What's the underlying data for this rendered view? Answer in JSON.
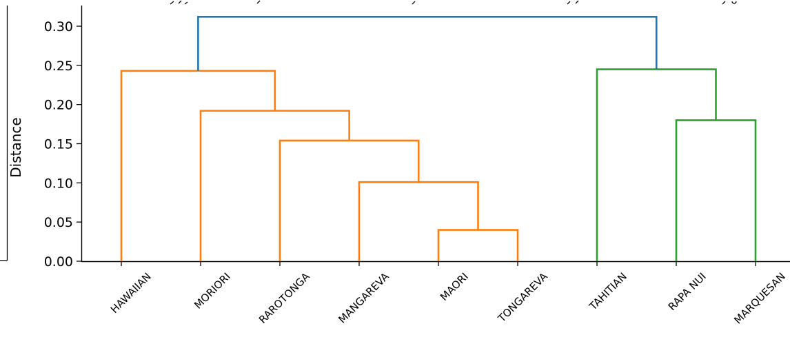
{
  "chart_data": {
    "type": "dendrogram",
    "ylabel": "Distance",
    "ylim": [
      0,
      0.325
    ],
    "yticks": [
      0.0,
      0.05,
      0.1,
      0.15,
      0.2,
      0.25,
      0.3
    ],
    "ytick_labels": [
      "0.00",
      "0.05",
      "0.10",
      "0.15",
      "0.20",
      "0.25",
      "0.30"
    ],
    "leaves": [
      "HAWAIIAN",
      "MORIORI",
      "RAROTONGA",
      "MANGAREVA",
      "MAORI",
      "TONGAREVA",
      "TAHITIAN",
      "RAPA NUI",
      "MARQUESAN"
    ],
    "links": [
      {
        "left": "MAORI",
        "right": "TONGAREVA",
        "height": 0.04,
        "color": "#ff7f0e"
      },
      {
        "left": "MANGAREVA",
        "right": "MAORI + TONGAREVA",
        "height": 0.101,
        "color": "#ff7f0e"
      },
      {
        "left": "RAROTONGA",
        "right": "MANGAREVA + MAORI + TONGAREVA",
        "height": 0.154,
        "color": "#ff7f0e"
      },
      {
        "left": "MORIORI",
        "right": "RAROTONGA + MANGAREVA + MAORI + TONGAREVA",
        "height": 0.192,
        "color": "#ff7f0e"
      },
      {
        "left": "HAWAIIAN",
        "right": "MORIORI + RAROTONGA + MANGAREVA + MAORI + TONGAREVA",
        "height": 0.243,
        "color": "#ff7f0e"
      },
      {
        "left": "RAPA NUI",
        "right": "MARQUESAN",
        "height": 0.18,
        "color": "#2ca02c"
      },
      {
        "left": "TAHITIAN",
        "right": "RAPA NUI + MARQUESAN",
        "height": 0.245,
        "color": "#2ca02c"
      },
      {
        "left": "HAWAIIAN cluster",
        "right": "TAHITIAN cluster",
        "height": 0.312,
        "color": "#1f77b4"
      }
    ],
    "cluster_colors": {
      "orange": "#ff7f0e",
      "green": "#2ca02c",
      "root": "#1f77b4"
    },
    "grid": false,
    "legend": "none"
  }
}
